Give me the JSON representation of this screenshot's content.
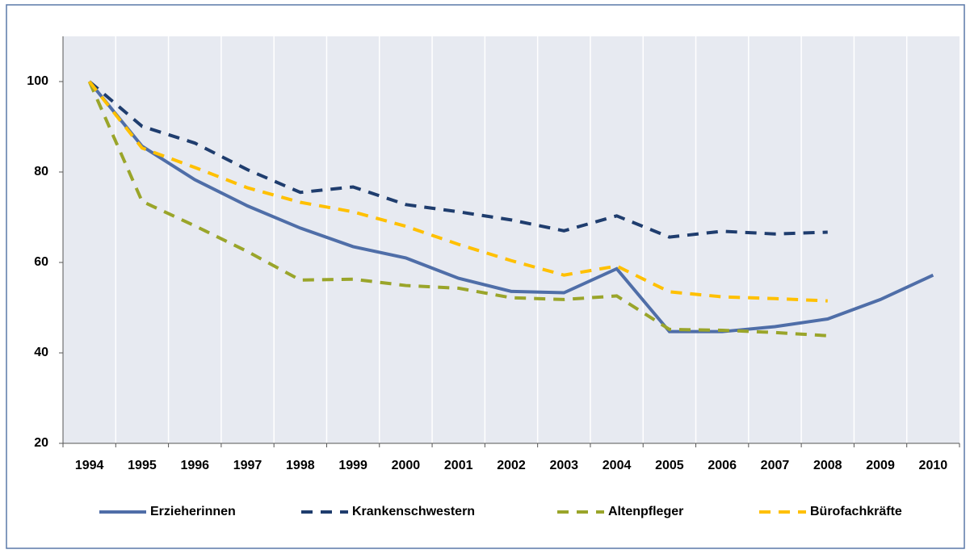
{
  "chart_data": {
    "type": "line",
    "categories": [
      "1994",
      "1995",
      "1996",
      "1997",
      "1998",
      "1999",
      "2000",
      "2001",
      "2002",
      "2003",
      "2004",
      "2005",
      "2006",
      "2007",
      "2008",
      "2009",
      "2010"
    ],
    "series": [
      {
        "name": "Erzieherinnen",
        "color": "#4f6ea8",
        "dash": false,
        "values": [
          100,
          85.7,
          78.3,
          72.5,
          67.6,
          63.5,
          61,
          56.5,
          53.6,
          53.3,
          58.6,
          44.7,
          44.7,
          45.8,
          47.5,
          51.8,
          57.2
        ]
      },
      {
        "name": "Krankenschwestern",
        "color": "#1f3d6e",
        "dash": true,
        "values": [
          100,
          90.1,
          86.4,
          80.5,
          75.5,
          76.7,
          72.8,
          71.2,
          69.4,
          67,
          70.3,
          65.6,
          66.9,
          66.3,
          66.7,
          null,
          null
        ]
      },
      {
        "name": "Altenpfleger",
        "color": "#9aa52a",
        "dash": true,
        "values": [
          100,
          73.5,
          68.1,
          62.4,
          56.1,
          56.3,
          54.9,
          54.3,
          52.2,
          51.8,
          52.6,
          45.2,
          45,
          44.5,
          43.8,
          null,
          null
        ]
      },
      {
        "name": "Bürofachkräfte",
        "color": "#ffc000",
        "dash": true,
        "values": [
          100,
          85.3,
          81,
          76.5,
          73.3,
          71.2,
          68,
          64,
          60.4,
          57.2,
          59.2,
          53.5,
          52.4,
          52,
          51.5,
          null,
          null
        ]
      }
    ],
    "ylim": [
      20,
      110
    ],
    "yticks": [
      20,
      40,
      60,
      80,
      100
    ],
    "grid": true,
    "legend": "bottom"
  }
}
